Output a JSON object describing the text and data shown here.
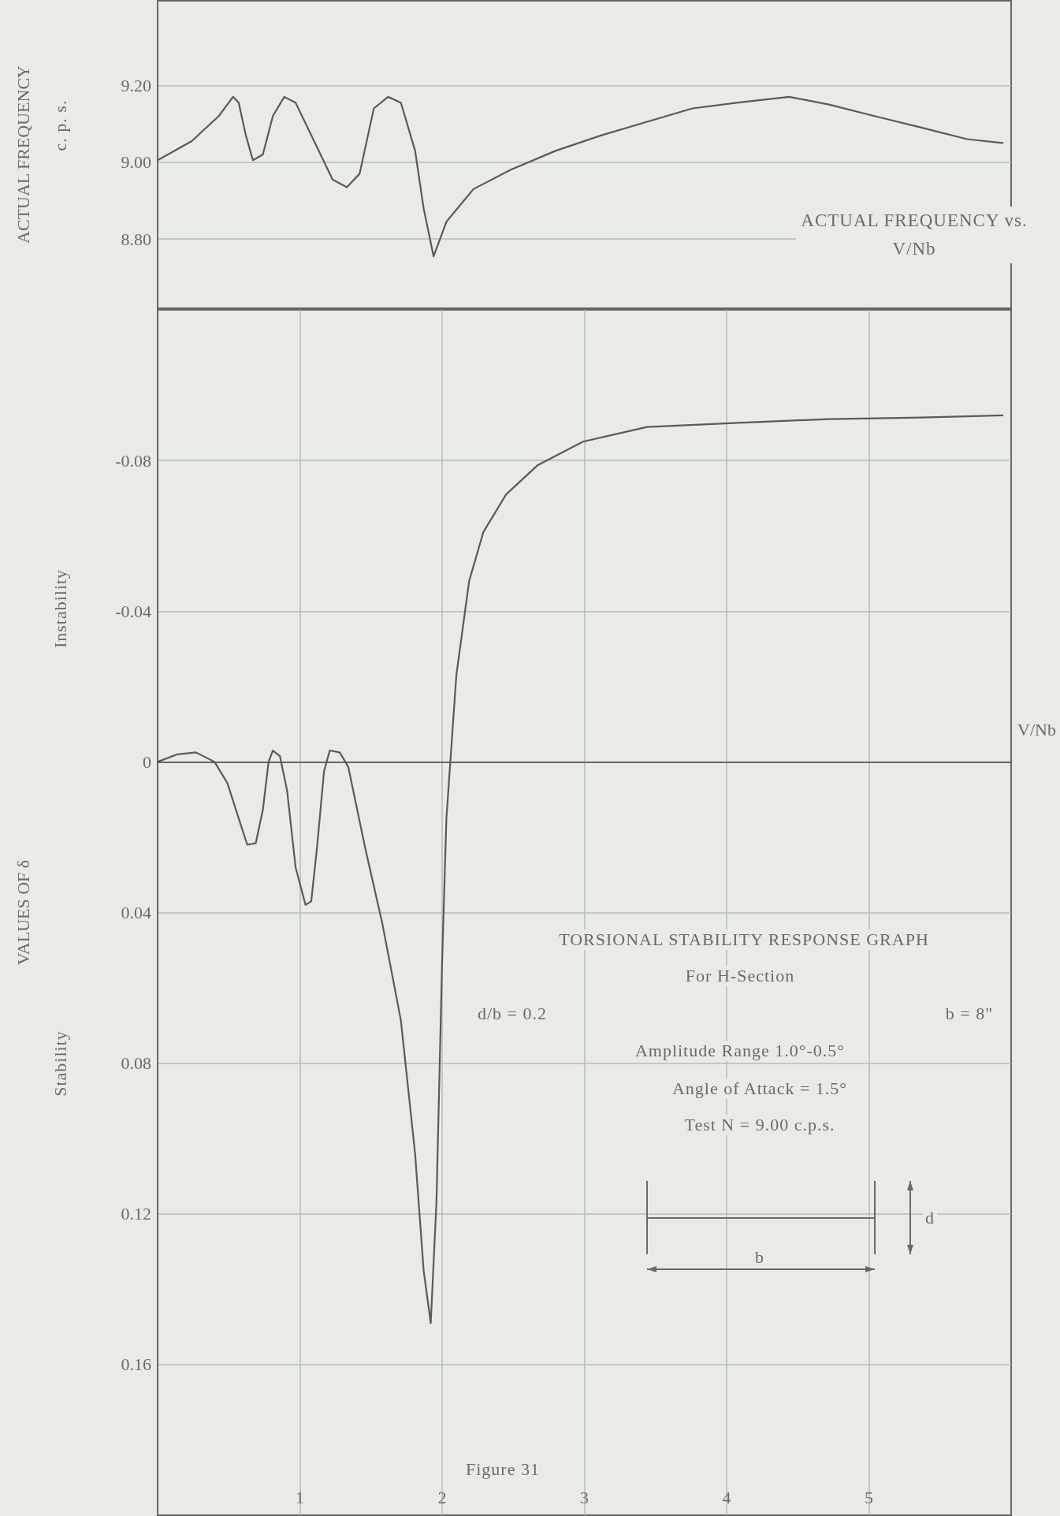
{
  "chart_data": [
    {
      "type": "line",
      "title": "ACTUAL FREQUENCY vs. V/Nb",
      "ylabel": "ACTUAL FREQUENCY",
      "annotations": [
        "c. p. s."
      ],
      "x": [
        0,
        0.24,
        0.43,
        0.53,
        0.57,
        0.62,
        0.67,
        0.74,
        0.81,
        0.89,
        0.97,
        1.1,
        1.23,
        1.33,
        1.42,
        1.52,
        1.62,
        1.71,
        1.81,
        1.87,
        1.94,
        2.03,
        2.22,
        2.48,
        2.8,
        3.12,
        3.44,
        3.76,
        4.08,
        4.44,
        4.72,
        5.04,
        5.37,
        5.69,
        5.94
      ],
      "series": [
        {
          "color": "#5a5a5a",
          "values": [
            9.005,
            9.055,
            9.12,
            9.17,
            9.155,
            9.07,
            9.005,
            9.02,
            9.12,
            9.17,
            9.155,
            9.055,
            8.955,
            8.935,
            8.97,
            9.14,
            9.17,
            9.155,
            9.03,
            8.88,
            8.755,
            8.845,
            8.93,
            8.98,
            9.03,
            9.07,
            9.105,
            9.14,
            9.155,
            9.17,
            9.15,
            9.12,
            9.09,
            9.06,
            9.05
          ]
        }
      ],
      "xlim": [
        0,
        6
      ],
      "ylim": [
        8.62,
        9.42
      ],
      "yticks": [
        {
          "value": 8.8,
          "label": "8.80"
        },
        {
          "value": 9.0,
          "label": "9.00"
        },
        {
          "value": 9.2,
          "label": "9.20"
        }
      ],
      "tick_labels": "y",
      "grid": true,
      "marker": "none",
      "line_style": "solid"
    },
    {
      "type": "line",
      "ylabel": "VALUES OF δ",
      "xlabel": "V/Nb",
      "annotations": [
        "TORSIONAL STABILITY RESPONSE GRAPH",
        "For H-Section",
        "d/b = 0.2",
        "b = 8\"",
        "Amplitude Range 1.0°-0.5°",
        "Angle of Attack = 1.5°",
        "Test N = 9.00 c.p.s.",
        "Figure 31",
        "Instability",
        "Stability",
        "b",
        "d"
      ],
      "x": [
        0,
        0.14,
        0.27,
        0.4,
        0.49,
        0.57,
        0.63,
        0.69,
        0.74,
        0.78,
        0.81,
        0.86,
        0.91,
        0.97,
        1.04,
        1.08,
        1.12,
        1.17,
        1.21,
        1.28,
        1.34,
        1.46,
        1.58,
        1.71,
        1.81,
        1.87,
        1.92,
        1.96,
        2.0,
        2.03,
        2.1,
        2.19,
        2.29,
        2.45,
        2.67,
        2.99,
        3.44,
        4.08,
        4.72,
        5.37,
        5.94
      ],
      "series": [
        {
          "color": "#5a5a5a",
          "values": [
            0,
            -0.002,
            -0.0025,
            0,
            0.0056,
            0.015,
            0.022,
            0.0216,
            0.0127,
            0,
            -0.003,
            -0.0015,
            0.0076,
            0.028,
            0.038,
            0.037,
            0.0229,
            0.0025,
            -0.003,
            -0.0025,
            0.0013,
            0.023,
            0.043,
            0.0686,
            0.104,
            0.135,
            0.149,
            0.117,
            0.053,
            0.015,
            -0.023,
            -0.048,
            -0.061,
            -0.071,
            -0.0787,
            -0.085,
            -0.0889,
            -0.09,
            -0.091,
            -0.0914,
            -0.092
          ]
        }
      ],
      "xlim": [
        0,
        6
      ],
      "ylim": [
        0.2,
        -0.12
      ],
      "xticks": [
        1,
        2,
        3,
        4,
        5
      ],
      "yticks": [
        -0.08,
        -0.04,
        0,
        0.04,
        0.08,
        0.12,
        0.16
      ],
      "grid": true,
      "marker": "none",
      "line_style": "solid"
    }
  ]
}
